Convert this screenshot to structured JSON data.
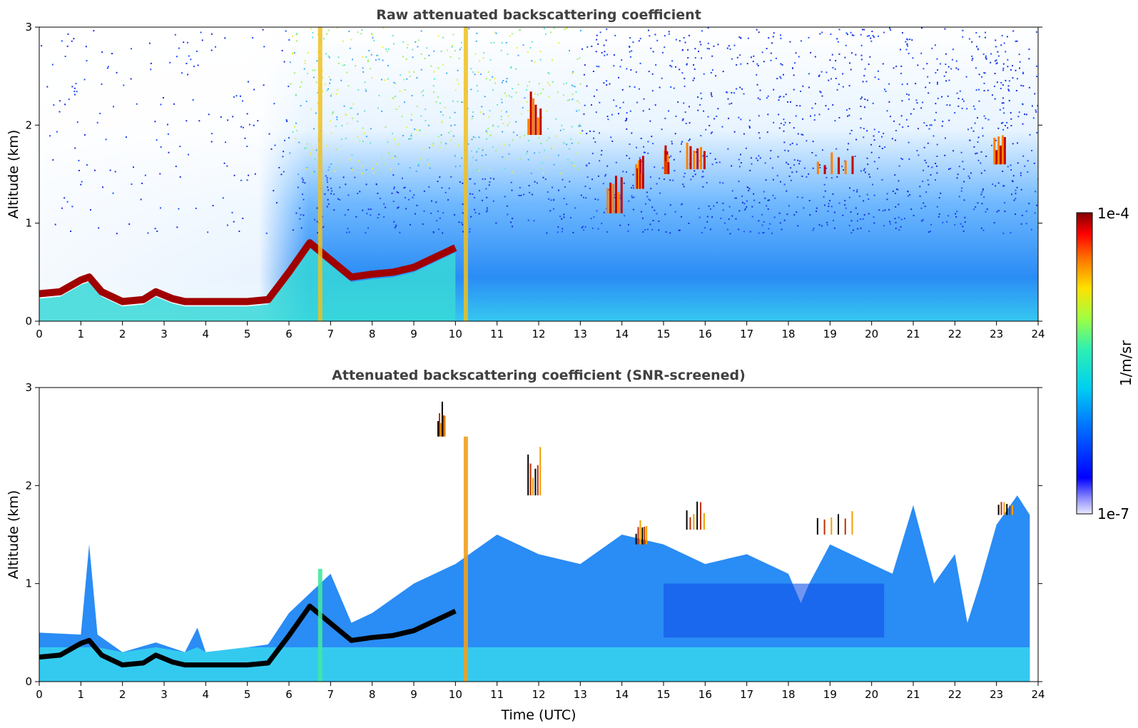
{
  "chart_data": [
    {
      "type": "heatmap",
      "title": "Raw attenuated backscattering coefficient",
      "xlabel": "",
      "ylabel": "Altitude (km)",
      "xlim": [
        0,
        24
      ],
      "ylim": [
        0,
        3
      ],
      "x_ticks": [
        "0",
        "1",
        "2",
        "3",
        "4",
        "5",
        "6",
        "7",
        "8",
        "9",
        "10",
        "11",
        "12",
        "13",
        "14",
        "15",
        "16",
        "17",
        "18",
        "19",
        "20",
        "21",
        "22",
        "23",
        "24"
      ],
      "y_ticks": [
        "0",
        "1",
        "2",
        "3"
      ],
      "colorscale": "jet (log)",
      "boundary_layer_top_km": [
        [
          0,
          0.28
        ],
        [
          0.5,
          0.3
        ],
        [
          1,
          0.42
        ],
        [
          1.2,
          0.45
        ],
        [
          1.5,
          0.3
        ],
        [
          2,
          0.2
        ],
        [
          2.5,
          0.22
        ],
        [
          2.8,
          0.3
        ],
        [
          3.2,
          0.23
        ],
        [
          3.5,
          0.2
        ],
        [
          4,
          0.2
        ],
        [
          4.5,
          0.2
        ],
        [
          5,
          0.2
        ],
        [
          5.5,
          0.22
        ],
        [
          6,
          0.5
        ],
        [
          6.5,
          0.8
        ],
        [
          7.5,
          0.45
        ],
        [
          8,
          0.48
        ],
        [
          8.5,
          0.5
        ],
        [
          9,
          0.55
        ],
        [
          10,
          0.75
        ]
      ],
      "vertical_streaks_utc": [
        6.75,
        10.25
      ],
      "cloud_patches": [
        {
          "t0": 11.7,
          "t1": 12.05,
          "z0": 1.9,
          "z1": 2.4
        },
        {
          "t0": 13.6,
          "t1": 14.0,
          "z0": 1.1,
          "z1": 1.5
        },
        {
          "t0": 14.3,
          "t1": 14.5,
          "z0": 1.35,
          "z1": 1.7
        },
        {
          "t0": 15.0,
          "t1": 15.1,
          "z0": 1.5,
          "z1": 1.8
        },
        {
          "t0": 15.5,
          "t1": 16.0,
          "z0": 1.55,
          "z1": 1.85
        },
        {
          "t0": 18.6,
          "t1": 19.6,
          "z0": 1.5,
          "z1": 1.75
        },
        {
          "t0": 22.9,
          "t1": 23.2,
          "z0": 1.6,
          "z1": 1.9
        }
      ]
    },
    {
      "type": "heatmap",
      "title": "Attenuated backscattering coefficient (SNR-screened)",
      "xlabel": "Time (UTC)",
      "ylabel": "Altitude (km)",
      "xlim": [
        0,
        24
      ],
      "ylim": [
        0,
        3
      ],
      "x_ticks": [
        "0",
        "1",
        "2",
        "3",
        "4",
        "5",
        "6",
        "7",
        "8",
        "9",
        "10",
        "11",
        "12",
        "13",
        "14",
        "15",
        "16",
        "17",
        "18",
        "19",
        "20",
        "21",
        "22",
        "23",
        "24"
      ],
      "y_ticks": [
        "0",
        "1",
        "2",
        "3"
      ],
      "colorscale": "jet (log)",
      "signal_top_km": [
        [
          0,
          0.5
        ],
        [
          1,
          0.48
        ],
        [
          1.2,
          1.4
        ],
        [
          1.4,
          0.48
        ],
        [
          2,
          0.3
        ],
        [
          2.8,
          0.4
        ],
        [
          3.5,
          0.3
        ],
        [
          3.8,
          0.55
        ],
        [
          4,
          0.3
        ],
        [
          5,
          0.35
        ],
        [
          5.5,
          0.38
        ],
        [
          6,
          0.7
        ],
        [
          6.5,
          0.9
        ],
        [
          7,
          1.1
        ],
        [
          7.5,
          0.6
        ],
        [
          8,
          0.7
        ],
        [
          9,
          1.0
        ],
        [
          10,
          1.2
        ],
        [
          11,
          1.5
        ],
        [
          12,
          1.3
        ],
        [
          13,
          1.2
        ],
        [
          14,
          1.5
        ],
        [
          15,
          1.4
        ],
        [
          16,
          1.2
        ],
        [
          17,
          1.3
        ],
        [
          18,
          1.1
        ],
        [
          18.3,
          0.8
        ],
        [
          18.5,
          1.0
        ],
        [
          19,
          1.4
        ],
        [
          20,
          1.2
        ],
        [
          20.5,
          1.1
        ],
        [
          21,
          1.8
        ],
        [
          21.5,
          1.0
        ],
        [
          22,
          1.3
        ],
        [
          22.3,
          0.6
        ],
        [
          22.6,
          1.0
        ],
        [
          23,
          1.6
        ],
        [
          23.5,
          1.9
        ],
        [
          23.8,
          1.7
        ]
      ],
      "cloud_patches": [
        {
          "t0": 9.55,
          "t1": 9.75,
          "z0": 2.5,
          "z1": 2.9
        },
        {
          "t0": 11.7,
          "t1": 12.05,
          "z0": 1.9,
          "z1": 2.4
        },
        {
          "t0": 14.3,
          "t1": 14.6,
          "z0": 1.4,
          "z1": 1.65
        },
        {
          "t0": 15.5,
          "t1": 16.0,
          "z0": 1.55,
          "z1": 1.85
        },
        {
          "t0": 18.6,
          "t1": 19.6,
          "z0": 1.5,
          "z1": 1.75
        },
        {
          "t0": 23.0,
          "t1": 23.4,
          "z0": 1.7,
          "z1": 1.9
        }
      ]
    }
  ],
  "colorbar": {
    "max_label": "1e-4",
    "min_label": "1e-7",
    "unit_label": "1/m/sr"
  }
}
